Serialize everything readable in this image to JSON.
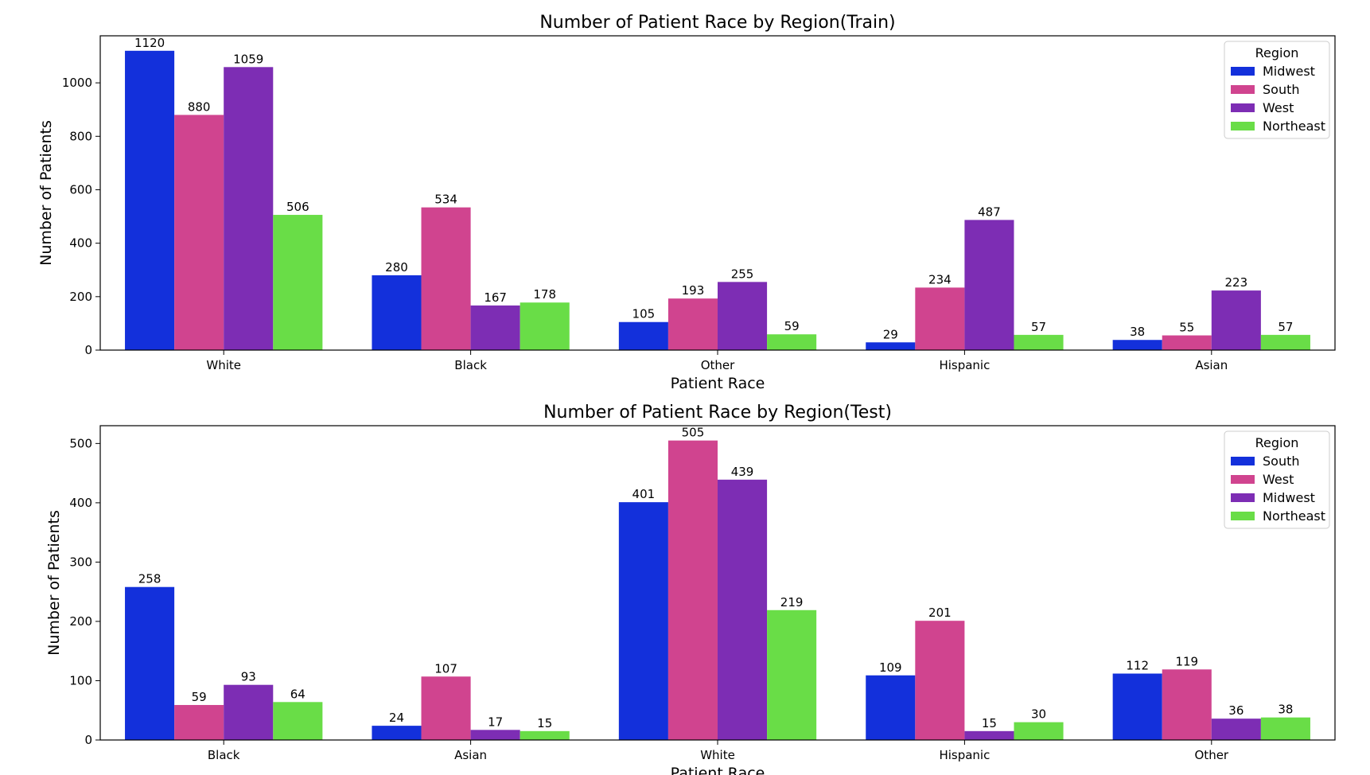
{
  "chart_data": [
    {
      "type": "bar",
      "title": "Number of Patient Race by Region(Train)",
      "xlabel": "Patient Race",
      "ylabel": "Number of Patients",
      "categories": [
        "White",
        "Black",
        "Other",
        "Hispanic",
        "Asian"
      ],
      "ylim": [
        0,
        1176
      ],
      "yticks": [
        0,
        200,
        400,
        600,
        800,
        1000
      ],
      "legend_title": "Region",
      "legend_position": "top-right",
      "series": [
        {
          "name": "Midwest",
          "color": "#1330db",
          "values": [
            1120,
            280,
            105,
            29,
            38
          ]
        },
        {
          "name": "South",
          "color": "#d0448f",
          "values": [
            880,
            534,
            193,
            234,
            55
          ]
        },
        {
          "name": "West",
          "color": "#7d2db4",
          "values": [
            1059,
            167,
            255,
            487,
            223
          ]
        },
        {
          "name": "Northeast",
          "color": "#69dd47",
          "values": [
            506,
            178,
            59,
            57,
            57
          ]
        }
      ]
    },
    {
      "type": "bar",
      "title": "Number of Patient Race by Region(Test)",
      "xlabel": "Patient Race",
      "ylabel": "Number of Patients",
      "categories": [
        "Black",
        "Asian",
        "White",
        "Hispanic",
        "Other"
      ],
      "ylim": [
        0,
        530
      ],
      "yticks": [
        0,
        100,
        200,
        300,
        400,
        500
      ],
      "legend_title": "Region",
      "legend_position": "top-right",
      "series": [
        {
          "name": "South",
          "color": "#1330db",
          "values": [
            258,
            24,
            401,
            109,
            112
          ]
        },
        {
          "name": "West",
          "color": "#d0448f",
          "values": [
            59,
            107,
            505,
            201,
            119
          ]
        },
        {
          "name": "Midwest",
          "color": "#7d2db4",
          "values": [
            93,
            17,
            439,
            15,
            36
          ]
        },
        {
          "name": "Northeast",
          "color": "#69dd47",
          "values": [
            64,
            15,
            219,
            30,
            38
          ]
        }
      ]
    }
  ]
}
